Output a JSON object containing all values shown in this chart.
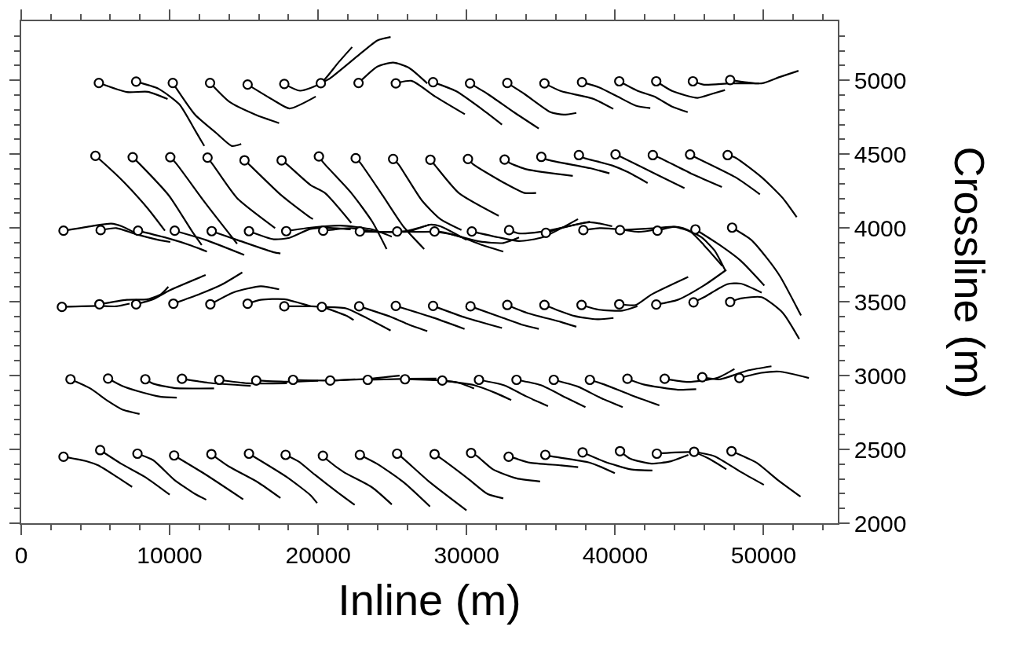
{
  "chart_data": {
    "type": "line",
    "xlabel": "Inline (m)",
    "ylabel": "Crossline (m)",
    "xlim": [
      0,
      55000
    ],
    "ylim": [
      2000,
      5400
    ],
    "xticks": [
      0,
      {
        "value": 2000,
        "label": null
      },
      {
        "value": 4000,
        "label": null
      },
      {
        "value": 6000,
        "label": null
      },
      {
        "value": 8000,
        "label": null
      },
      10000,
      {
        "value": 12000,
        "label": null
      },
      {
        "value": 14000,
        "label": null
      },
      {
        "value": 16000,
        "label": null
      },
      {
        "value": 18000,
        "label": null
      },
      20000,
      {
        "value": 22000,
        "label": null
      },
      {
        "value": 24000,
        "label": null
      },
      {
        "value": 26000,
        "label": null
      },
      {
        "value": 28000,
        "label": null
      },
      30000,
      {
        "value": 32000,
        "label": null
      },
      {
        "value": 34000,
        "label": null
      },
      {
        "value": 36000,
        "label": null
      },
      {
        "value": 38000,
        "label": null
      },
      40000,
      {
        "value": 42000,
        "label": null
      },
      {
        "value": 44000,
        "label": null
      },
      {
        "value": 46000,
        "label": null
      },
      {
        "value": 48000,
        "label": null
      },
      50000,
      {
        "value": 52000,
        "label": null
      },
      {
        "value": 54000,
        "label": null
      }
    ],
    "yticks": [
      2000,
      {
        "value": 2100,
        "label": null
      },
      {
        "value": 2200,
        "label": null
      },
      {
        "value": 2300,
        "label": null
      },
      {
        "value": 2400,
        "label": null
      },
      2500,
      {
        "value": 2600,
        "label": null
      },
      {
        "value": 2700,
        "label": null
      },
      {
        "value": 2800,
        "label": null
      },
      {
        "value": 2900,
        "label": null
      },
      3000,
      {
        "value": 3100,
        "label": null
      },
      {
        "value": 3200,
        "label": null
      },
      {
        "value": 3300,
        "label": null
      },
      {
        "value": 3400,
        "label": null
      },
      3500,
      {
        "value": 3600,
        "label": null
      },
      {
        "value": 3700,
        "label": null
      },
      {
        "value": 3800,
        "label": null
      },
      {
        "value": 3900,
        "label": null
      },
      4000,
      {
        "value": 4100,
        "label": null
      },
      {
        "value": 4200,
        "label": null
      },
      {
        "value": 4300,
        "label": null
      },
      {
        "value": 4400,
        "label": null
      },
      4500,
      {
        "value": 4600,
        "label": null
      },
      {
        "value": 4700,
        "label": null
      },
      {
        "value": 4800,
        "label": null
      },
      {
        "value": 4900,
        "label": null
      },
      5000,
      {
        "value": 5100,
        "label": null
      },
      {
        "value": 5200,
        "label": null
      },
      {
        "value": 5300,
        "label": null
      }
    ],
    "series": [
      {
        "color": "#000000",
        "x": [
          5230,
          7120,
          8530,
          9860
        ],
        "values": [
          4982,
          4920,
          4922,
          4873
        ]
      },
      {
        "color": "#000000",
        "x": [
          7740,
          9240,
          10650,
          11710,
          12330
        ],
        "values": [
          4991,
          4943,
          4837,
          4661,
          4555
        ]
      },
      {
        "color": "#000000",
        "x": [
          10210,
          11710,
          13130,
          14190,
          14820
        ],
        "values": [
          4982,
          4767,
          4643,
          4555,
          4569
        ]
      },
      {
        "color": "#000000",
        "x": [
          12720,
          14010,
          15780,
          17370
        ],
        "values": [
          4982,
          4855,
          4767,
          4710
        ]
      },
      {
        "color": "#000000",
        "x": [
          15250,
          17010,
          18070,
          19840
        ],
        "values": [
          4971,
          4864,
          4809,
          4890
        ]
      },
      {
        "color": "#000000",
        "x": [
          17720,
          18780,
          20180,
          21360,
          22290
        ],
        "values": [
          4975,
          4929,
          4980,
          5120,
          5225
        ]
      },
      {
        "color": "#000000",
        "x": [
          20180,
          20810,
          22760,
          23990,
          24880
        ],
        "values": [
          4980,
          5014,
          5173,
          5270,
          5293
        ]
      },
      {
        "color": "#000000",
        "x": [
          22720,
          23990,
          25050,
          26110,
          27350
        ],
        "values": [
          4982,
          5093,
          5120,
          5085,
          4979
        ]
      },
      {
        "color": "#000000",
        "x": [
          25230,
          26290,
          27880,
          29880
        ],
        "values": [
          4979,
          4996,
          4890,
          4770
        ]
      },
      {
        "color": "#000000",
        "x": [
          27740,
          29290,
          31060,
          32380
        ],
        "values": [
          4987,
          4926,
          4802,
          4700
        ]
      },
      {
        "color": "#000000",
        "x": [
          30230,
          31410,
          33180,
          34860
        ],
        "values": [
          4979,
          4908,
          4784,
          4673
        ]
      },
      {
        "color": "#000000",
        "x": [
          32740,
          33890,
          35650,
          36540,
          37390
        ],
        "values": [
          4982,
          4908,
          4784,
          4767,
          4779
        ]
      },
      {
        "color": "#000000",
        "x": [
          35240,
          36360,
          37700,
          38560,
          39880
        ],
        "values": [
          4979,
          4926,
          4895,
          4873,
          4806
        ]
      },
      {
        "color": "#000000",
        "x": [
          37770,
          38920,
          40160,
          41390,
          42370
        ],
        "values": [
          4987,
          4952,
          4890,
          4828,
          4811
        ]
      },
      {
        "color": "#000000",
        "x": [
          40280,
          41570,
          42630,
          43870,
          44890
        ],
        "values": [
          4993,
          4926,
          4890,
          4820,
          4784
        ]
      },
      {
        "color": "#000000",
        "x": [
          42770,
          43870,
          45550,
          46520,
          47400
        ],
        "values": [
          4993,
          4926,
          4881,
          4908,
          4934
        ]
      },
      {
        "color": "#000000",
        "x": [
          45240,
          45990,
          47750,
          49700
        ],
        "values": [
          4993,
          4970,
          4979,
          4979
        ]
      },
      {
        "color": "#000000",
        "x": [
          47750,
          49870,
          51110,
          52350
        ],
        "values": [
          5002,
          4979,
          5023,
          5064
        ]
      },
      {
        "color": "#000000",
        "x": [
          5000,
          5350,
          6940,
          8530,
          9680
        ],
        "values": [
          4488,
          4458,
          4308,
          4131,
          3981
        ]
      },
      {
        "color": "#000000",
        "x": [
          7510,
          8000,
          9950,
          11540,
          12160
        ],
        "values": [
          4479,
          4431,
          4219,
          3972,
          3884
        ]
      },
      {
        "color": "#000000",
        "x": [
          10040,
          10480,
          12420,
          14540
        ],
        "values": [
          4479,
          4431,
          4166,
          3893
        ]
      },
      {
        "color": "#000000",
        "x": [
          12550,
          12950,
          14540,
          17100
        ],
        "values": [
          4476,
          4423,
          4202,
          3999
        ]
      },
      {
        "color": "#000000",
        "x": [
          15040,
          15420,
          17540,
          19490,
          19650
        ],
        "values": [
          4458,
          4423,
          4219,
          4069,
          4060
        ]
      },
      {
        "color": "#000000",
        "x": [
          17540,
          17900,
          19490,
          20460,
          22230
        ],
        "values": [
          4458,
          4431,
          4290,
          4237,
          4034
        ]
      },
      {
        "color": "#000000",
        "x": [
          20050,
          20370,
          22230,
          23640,
          24610
        ],
        "values": [
          4484,
          4440,
          4237,
          4043,
          3857
        ]
      },
      {
        "color": "#000000",
        "x": [
          22530,
          22840,
          24350,
          25760,
          27140
        ],
        "values": [
          4472,
          4440,
          4219,
          4007,
          3857
        ]
      },
      {
        "color": "#000000",
        "x": [
          25050,
          25410,
          27000,
          28230,
          29650
        ],
        "values": [
          4467,
          4431,
          4184,
          4060,
          3986
        ]
      },
      {
        "color": "#000000",
        "x": [
          27560,
          27880,
          29470,
          32160
        ],
        "values": [
          4462,
          4423,
          4237,
          4082
        ]
      },
      {
        "color": "#000000",
        "x": [
          30090,
          30440,
          32470,
          33890,
          34680
        ],
        "values": [
          4467,
          4431,
          4308,
          4237,
          4237
        ]
      },
      {
        "color": "#000000",
        "x": [
          32560,
          32910,
          34060,
          37150
        ],
        "values": [
          4463,
          4440,
          4396,
          4352
        ]
      },
      {
        "color": "#000000",
        "x": [
          35030,
          35390,
          38300,
          39620
        ],
        "values": [
          4481,
          4463,
          4405,
          4370
        ]
      },
      {
        "color": "#000000",
        "x": [
          37560,
          37860,
          39800,
          40860,
          42190
        ],
        "values": [
          4493,
          4476,
          4423,
          4378,
          4304
        ]
      },
      {
        "color": "#000000",
        "x": [
          40030,
          40510,
          42810,
          44670
        ],
        "values": [
          4498,
          4476,
          4361,
          4269
        ]
      },
      {
        "color": "#000000",
        "x": [
          42540,
          42980,
          45280,
          47190
        ],
        "values": [
          4493,
          4476,
          4361,
          4277
        ]
      },
      {
        "color": "#000000",
        "x": [
          45050,
          45460,
          48110,
          49750
        ],
        "values": [
          4497,
          4476,
          4343,
          4228
        ]
      },
      {
        "color": "#000000",
        "x": [
          47580,
          48110,
          49870,
          51290,
          52230
        ],
        "values": [
          4493,
          4476,
          4343,
          4202,
          4073
        ]
      },
      {
        "color": "#000000",
        "x": [
          2850,
          4650,
          6060,
          6770,
          7830
        ],
        "values": [
          3981,
          4011,
          4029,
          4011,
          3958
        ]
      },
      {
        "color": "#000000",
        "x": [
          5350,
          6410,
          7650,
          9240,
          10040
        ],
        "values": [
          3985,
          3999,
          3960,
          3919,
          3905
        ]
      },
      {
        "color": "#000000",
        "x": [
          7870,
          9950,
          11360,
          12510
        ],
        "values": [
          3981,
          3928,
          3884,
          3840
        ]
      },
      {
        "color": "#000000",
        "x": [
          10340,
          12420,
          15020
        ],
        "values": [
          3981,
          3919,
          3817
        ]
      },
      {
        "color": "#000000",
        "x": [
          12830,
          14540,
          17010,
          17460
        ],
        "values": [
          3978,
          3919,
          3835,
          3827
        ]
      },
      {
        "color": "#000000",
        "x": [
          15340,
          17010,
          18070,
          19490,
          20810,
          22190
        ],
        "values": [
          3978,
          3923,
          3933,
          3993,
          4000,
          3990
        ]
      },
      {
        "color": "#000000",
        "x": [
          17850,
          19490,
          21500,
          23640,
          24960
        ],
        "values": [
          3978,
          4002,
          4016,
          3990,
          3941
        ]
      },
      {
        "color": "#000000",
        "x": [
          20340,
          22230,
          23990,
          25760,
          27530
        ],
        "values": [
          3981,
          3999,
          3973,
          3976,
          4022
        ]
      },
      {
        "color": "#000000",
        "x": [
          22810,
          24520,
          26110,
          27530,
          28230,
          29990
        ],
        "values": [
          3976,
          3973,
          3976,
          4022,
          4011,
          3919
        ]
      },
      {
        "color": "#000000",
        "x": [
          25320,
          26640,
          28230,
          29650,
          31060,
          32470
        ],
        "values": [
          3976,
          3973,
          3973,
          3937,
          3884,
          3840
        ]
      },
      {
        "color": "#000000",
        "x": [
          27840,
          29020,
          30880,
          32470,
          33530
        ],
        "values": [
          3976,
          3956,
          3908,
          3898,
          3935
        ]
      },
      {
        "color": "#000000",
        "x": [
          30350,
          32100,
          33530,
          35120,
          37500
        ],
        "values": [
          3976,
          3937,
          3911,
          3937,
          4060
        ]
      },
      {
        "color": "#000000",
        "x": [
          32860,
          33530,
          34950,
          38300
        ],
        "values": [
          3985,
          3963,
          3973,
          4043
        ]
      },
      {
        "color": "#000000",
        "x": [
          35340,
          36360,
          38300,
          39800
        ],
        "values": [
          3967,
          3999,
          4039,
          4011
        ]
      },
      {
        "color": "#000000",
        "x": [
          37860,
          39000,
          40330,
          41570,
          42810
        ],
        "values": [
          3985,
          3999,
          3990,
          3973,
          3990
        ]
      },
      {
        "color": "#000000",
        "x": [
          40330,
          42800,
          44040,
          45100,
          45980,
          47220
        ],
        "values": [
          3985,
          3999,
          4007,
          3972,
          3884,
          3743
        ]
      },
      {
        "color": "#000000",
        "x": [
          42850,
          43870,
          44570,
          45810,
          46690,
          47400
        ],
        "values": [
          3981,
          4007,
          3999,
          3937,
          3848,
          3716
        ]
      },
      {
        "color": "#000000",
        "x": [
          45410,
          47050,
          48460,
          50050
        ],
        "values": [
          3990,
          3884,
          3778,
          3610
        ]
      },
      {
        "color": "#000000",
        "x": [
          47880,
          49170,
          50230,
          51110,
          52520
        ],
        "values": [
          4002,
          3919,
          3795,
          3672,
          3407
        ]
      },
      {
        "color": "#000000",
        "x": [
          2740,
          5180,
          6410,
          7300
        ],
        "values": [
          3465,
          3472,
          3469,
          3487
        ]
      },
      {
        "color": "#000000",
        "x": [
          5270,
          7120,
          8530,
          9420,
          9910
        ],
        "values": [
          3483,
          3513,
          3517,
          3552,
          3602
        ]
      },
      {
        "color": "#000000",
        "x": [
          7740,
          8890,
          9950,
          12420
        ],
        "values": [
          3483,
          3517,
          3575,
          3681
        ]
      },
      {
        "color": "#000000",
        "x": [
          10250,
          11710,
          13480,
          14890
        ],
        "values": [
          3487,
          3540,
          3615,
          3699
        ]
      },
      {
        "color": "#000000",
        "x": [
          12740,
          14360,
          16130,
          17370
        ],
        "values": [
          3483,
          3566,
          3605,
          3584
        ]
      },
      {
        "color": "#000000",
        "x": [
          15250,
          16130,
          17720,
          19490
        ],
        "values": [
          3487,
          3513,
          3517,
          3469
        ]
      },
      {
        "color": "#000000",
        "x": [
          17720,
          19490,
          20260,
          21860,
          22390
        ],
        "values": [
          3469,
          3469,
          3464,
          3407,
          3376
        ]
      },
      {
        "color": "#000000",
        "x": [
          20250,
          21870,
          22930,
          24880
        ],
        "values": [
          3465,
          3455,
          3407,
          3305
        ]
      },
      {
        "color": "#000000",
        "x": [
          22760,
          24880,
          26110,
          27350
        ],
        "values": [
          3469,
          3398,
          3345,
          3301
        ]
      },
      {
        "color": "#000000",
        "x": [
          25230,
          27530,
          29860
        ],
        "values": [
          3472,
          3400,
          3316
        ]
      },
      {
        "color": "#000000",
        "x": [
          27740,
          30000,
          32380
        ],
        "values": [
          3472,
          3390,
          3322
        ]
      },
      {
        "color": "#000000",
        "x": [
          30260,
          32460,
          33710,
          34860
        ],
        "values": [
          3469,
          3390,
          3345,
          3316
        ]
      },
      {
        "color": "#000000",
        "x": [
          32740,
          34060,
          36360,
          37390
        ],
        "values": [
          3478,
          3425,
          3363,
          3331
        ]
      },
      {
        "color": "#000000",
        "x": [
          35240,
          36360,
          37240,
          38300,
          38920,
          39890
        ],
        "values": [
          3478,
          3434,
          3404,
          3386,
          3381,
          3390
        ]
      },
      {
        "color": "#000000",
        "x": [
          37740,
          38920,
          40500,
          41500
        ],
        "values": [
          3478,
          3446,
          3440,
          3470
        ]
      },
      {
        "color": "#000000",
        "x": [
          40280,
          41390,
          42450,
          44920
        ],
        "values": [
          3483,
          3478,
          3549,
          3668
        ]
      },
      {
        "color": "#000000",
        "x": [
          42770,
          44220,
          45980,
          47490
        ],
        "values": [
          3481,
          3513,
          3610,
          3716
        ]
      },
      {
        "color": "#000000",
        "x": [
          45280,
          45990,
          47550,
          48460,
          49870
        ],
        "values": [
          3496,
          3531,
          3619,
          3623,
          3562
        ]
      },
      {
        "color": "#000000",
        "x": [
          47750,
          48460,
          49870,
          51290,
          52400
        ],
        "values": [
          3499,
          3522,
          3531,
          3425,
          3248
        ]
      },
      {
        "color": "#000000",
        "x": [
          3320,
          4650,
          5880,
          6770,
          7970
        ],
        "values": [
          2975,
          2913,
          2825,
          2772,
          2740
        ]
      },
      {
        "color": "#000000",
        "x": [
          5850,
          6770,
          7830,
          9420,
          10480
        ],
        "values": [
          2980,
          2931,
          2895,
          2856,
          2851
        ]
      },
      {
        "color": "#000000",
        "x": [
          8360,
          8890,
          10300,
          12990
        ],
        "values": [
          2975,
          2945,
          2916,
          2913
        ]
      },
      {
        "color": "#000000",
        "x": [
          10830,
          12600,
          15460
        ],
        "values": [
          2978,
          2951,
          2930
        ]
      },
      {
        "color": "#000000",
        "x": [
          13340,
          15250,
          17900
        ],
        "values": [
          2971,
          2948,
          2948
        ]
      },
      {
        "color": "#000000",
        "x": [
          15830,
          18000,
          20000
        ],
        "values": [
          2966,
          2958,
          2965
        ]
      },
      {
        "color": "#000000",
        "x": [
          18310,
          20810,
          22500
        ],
        "values": [
          2971,
          2966,
          2975
        ]
      },
      {
        "color": "#000000",
        "x": [
          20810,
          23340,
          25490
        ],
        "values": [
          2966,
          2978,
          3000
        ]
      },
      {
        "color": "#000000",
        "x": [
          23340,
          25850,
          27970
        ],
        "values": [
          2971,
          2978,
          2980
        ]
      },
      {
        "color": "#000000",
        "x": [
          25850,
          28360,
          29500,
          30500
        ],
        "values": [
          2975,
          2966,
          2950,
          2913
        ]
      },
      {
        "color": "#000000",
        "x": [
          28360,
          30500,
          32000,
          33000
        ],
        "values": [
          2966,
          2935,
          2880,
          2834
        ]
      },
      {
        "color": "#000000",
        "x": [
          30830,
          32500,
          34000,
          35480
        ],
        "values": [
          2971,
          2935,
          2860,
          2793
        ]
      },
      {
        "color": "#000000",
        "x": [
          33360,
          35000,
          36700,
          38000
        ],
        "values": [
          2971,
          2935,
          2850,
          2786
        ]
      },
      {
        "color": "#000000",
        "x": [
          35870,
          37500,
          39000,
          40510
        ],
        "values": [
          2971,
          2925,
          2850,
          2786
        ]
      },
      {
        "color": "#000000",
        "x": [
          38300,
          39270,
          41040,
          42980
        ],
        "values": [
          2971,
          2940,
          2869,
          2798
        ]
      },
      {
        "color": "#000000",
        "x": [
          40830,
          41920,
          44220,
          45460
        ],
        "values": [
          2978,
          2940,
          2904,
          2908
        ]
      },
      {
        "color": "#000000",
        "x": [
          43340,
          44920,
          46870,
          48040
        ],
        "values": [
          2978,
          2957,
          2984,
          3045
        ]
      },
      {
        "color": "#000000",
        "x": [
          45870,
          47050,
          48990,
          50530
        ],
        "values": [
          2989,
          2975,
          3036,
          3063
        ]
      },
      {
        "color": "#000000",
        "x": [
          48370,
          49870,
          51110,
          53050
        ],
        "values": [
          2984,
          3019,
          3027,
          2984
        ]
      },
      {
        "color": "#000000",
        "x": [
          2850,
          4470,
          5180,
          6410,
          7470
        ],
        "values": [
          2450,
          2418,
          2392,
          2316,
          2246
        ]
      },
      {
        "color": "#000000",
        "x": [
          5320,
          6770,
          8360,
          10000
        ],
        "values": [
          2495,
          2401,
          2312,
          2193
        ]
      },
      {
        "color": "#000000",
        "x": [
          7830,
          8890,
          10300,
          11710,
          12460
        ],
        "values": [
          2471,
          2427,
          2295,
          2198,
          2159
        ]
      },
      {
        "color": "#000000",
        "x": [
          10300,
          12420,
          14950
        ],
        "values": [
          2459,
          2330,
          2162
        ]
      },
      {
        "color": "#000000",
        "x": [
          12810,
          14010,
          15950,
          17460
        ],
        "values": [
          2468,
          2383,
          2277,
          2171
        ]
      },
      {
        "color": "#000000",
        "x": [
          15340,
          17900,
          19490,
          19930
        ],
        "values": [
          2471,
          2312,
          2189,
          2136
        ]
      },
      {
        "color": "#000000",
        "x": [
          17810,
          18680,
          19760,
          21340,
          22460
        ],
        "values": [
          2463,
          2418,
          2330,
          2207,
          2124
        ]
      },
      {
        "color": "#000000",
        "x": [
          20320,
          20640,
          21700,
          23640,
          24960
        ],
        "values": [
          2457,
          2427,
          2348,
          2242,
          2127
        ]
      },
      {
        "color": "#000000",
        "x": [
          22810,
          23990,
          25760,
          27530
        ],
        "values": [
          2463,
          2401,
          2277,
          2113
        ]
      },
      {
        "color": "#000000",
        "x": [
          25320,
          25760,
          27530,
          29990
        ],
        "values": [
          2471,
          2436,
          2277,
          2087
        ]
      },
      {
        "color": "#000000",
        "x": [
          27840,
          28230,
          30180,
          31410,
          32470
        ],
        "values": [
          2468,
          2442,
          2295,
          2198,
          2168
        ]
      },
      {
        "color": "#000000",
        "x": [
          30300,
          30710,
          31770,
          33360,
          34950
        ],
        "values": [
          2476,
          2454,
          2365,
          2304,
          2283
        ]
      },
      {
        "color": "#000000",
        "x": [
          32830,
          33180,
          34240,
          36360,
          37510
        ],
        "values": [
          2450,
          2442,
          2410,
          2392,
          2380
        ]
      },
      {
        "color": "#000000",
        "x": [
          35300,
          35650,
          38300,
          39980
        ],
        "values": [
          2463,
          2454,
          2410,
          2339
        ]
      },
      {
        "color": "#000000",
        "x": [
          37810,
          39270,
          41040,
          42510
        ],
        "values": [
          2480,
          2418,
          2365,
          2357
        ]
      },
      {
        "color": "#000000",
        "x": [
          40330,
          41040,
          42450,
          43690,
          44930
        ],
        "values": [
          2488,
          2436,
          2404,
          2418,
          2463
        ]
      },
      {
        "color": "#000000",
        "x": [
          42810,
          45280,
          46340,
          47490
        ],
        "values": [
          2471,
          2480,
          2436,
          2365
        ]
      },
      {
        "color": "#000000",
        "x": [
          45320,
          46690,
          48460,
          50020
        ],
        "values": [
          2484,
          2454,
          2348,
          2260
        ]
      },
      {
        "color": "#000000",
        "x": [
          47840,
          49520,
          50930,
          52490
        ],
        "values": [
          2488,
          2410,
          2295,
          2180
        ]
      },
      {
        "type": "scatter",
        "marker": "circle",
        "color": "#000000",
        "x": [
          5230,
          7740,
          10210,
          12720,
          15250,
          17720,
          20180,
          22720,
          25230,
          27740,
          30230,
          32740,
          35240,
          37770,
          40280,
          42770,
          45240,
          47750,
          5000,
          7510,
          10040,
          12550,
          15040,
          17540,
          20050,
          22530,
          25050,
          27560,
          30090,
          32560,
          35030,
          37560,
          40030,
          42540,
          45050,
          47580,
          2850,
          5350,
          7870,
          10340,
          12830,
          15340,
          17850,
          20340,
          22810,
          25320,
          27840,
          30350,
          32860,
          35340,
          37860,
          40330,
          42850,
          45410,
          47880,
          2740,
          5270,
          7740,
          10250,
          12740,
          15250,
          17720,
          20250,
          22760,
          25230,
          27740,
          30260,
          32740,
          35240,
          37740,
          40280,
          42770,
          45280,
          47750,
          3320,
          5850,
          8360,
          10830,
          13340,
          15830,
          18310,
          20810,
          23340,
          25850,
          28360,
          30830,
          33360,
          35870,
          38300,
          40830,
          43340,
          45870,
          48370,
          2850,
          5320,
          7830,
          10300,
          12810,
          15340,
          17810,
          20320,
          22810,
          25320,
          27840,
          30300,
          32830,
          35300,
          37810,
          40330,
          42810,
          45320,
          47840
        ],
        "values": [
          4982,
          4991,
          4982,
          4982,
          4971,
          4975,
          4980,
          4982,
          4979,
          4987,
          4979,
          4982,
          4979,
          4987,
          4993,
          4993,
          4993,
          5002,
          4488,
          4479,
          4479,
          4476,
          4458,
          4458,
          4484,
          4472,
          4467,
          4462,
          4467,
          4463,
          4481,
          4493,
          4498,
          4493,
          4497,
          4493,
          3981,
          3985,
          3981,
          3981,
          3978,
          3978,
          3978,
          3981,
          3976,
          3976,
          3976,
          3976,
          3985,
          3967,
          3985,
          3985,
          3981,
          3990,
          4002,
          3465,
          3483,
          3483,
          3487,
          3483,
          3487,
          3469,
          3465,
          3469,
          3472,
          3472,
          3469,
          3478,
          3478,
          3478,
          3483,
          3481,
          3496,
          3499,
          2975,
          2980,
          2975,
          2978,
          2971,
          2966,
          2971,
          2966,
          2971,
          2975,
          2966,
          2971,
          2971,
          2971,
          2971,
          2978,
          2978,
          2989,
          2984,
          2450,
          2495,
          2471,
          2459,
          2468,
          2471,
          2463,
          2457,
          2463,
          2471,
          2468,
          2476,
          2450,
          2463,
          2480,
          2488,
          2471,
          2484,
          2488
        ]
      }
    ]
  }
}
